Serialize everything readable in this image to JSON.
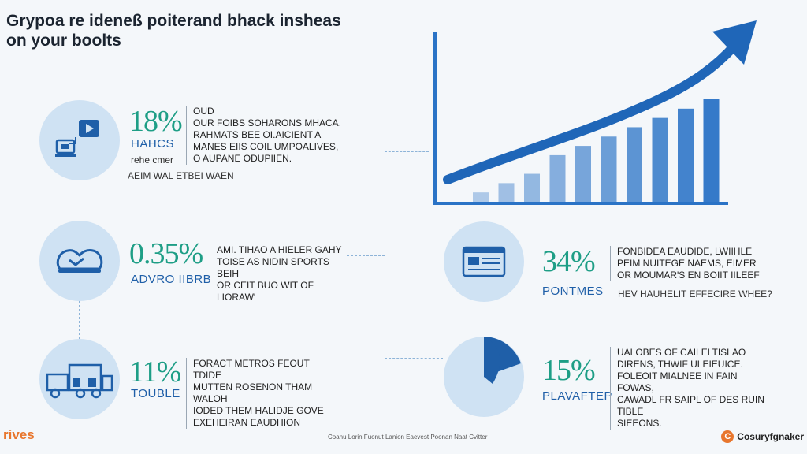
{
  "title": {
    "line1": "Grypoa re ideneß poiterand bhack insheas",
    "line2": "on your boolts"
  },
  "stats": [
    {
      "percent": "18%",
      "label": "HAHCS",
      "sub1": "rehe cmer",
      "sub2": "AEIM WAL ETBEI WAEN",
      "desc": "OUD\nOUR FOIBS SOHARONS MHACA.\nRAHMATS BEE OI.AICIENT A\nMANES EIIS COIL UMPOALIVES,\nO AUPANE ODUPIIEN.",
      "icon": "video-monitor-icon"
    },
    {
      "percent": "0.35%",
      "label": "ADVRO IIBRB",
      "desc": "AMI. TIHAO A HIELER GAHY\nTOISE AS NIDIN SPORTS BEIH\nOR CEIT BUO WIT OF LIORAW'",
      "icon": "handshake-icon"
    },
    {
      "percent": "11%",
      "label": "TOUBLE",
      "desc": "FORACT METROS FEOUT TDIDE\nMUTTEN ROSENON THAM WALOH\nIODED THEM HALIDJE GOVE\nEXEHEIRAN EAUDHION",
      "icon": "trucks-icon"
    },
    {
      "percent": "34%",
      "label": "PONTMES",
      "desc": "FONBIDEA EAUDIDE, LWIIHLE\nPEIM NUITEGE NAEMS, EIMER\nOR MOUMAR'S EN BOIIT IILEEF",
      "sub2": "HEV HAUHELIT EFFECIRE WHEE?",
      "icon": "card-window-icon"
    },
    {
      "percent": "15%",
      "label": "PLAVAFTEP",
      "desc": "UALOBES OF CAILELTISLAO\nDIRENS, THWIF ULEIEUICE.\nFOLEOIT MIALNEE IN FAIN FOWAS,\nCAWADL FR SAIPL OF DES RUIN TIBLE\nSIEEONS.",
      "icon": "pie-slice-icon"
    }
  ],
  "footer": {
    "brand_left": "rives",
    "fine_print": "Coanu Lorin Fuonut Lanion Eaevest Poonan Naat Cvitter",
    "brand_right": "Cosuryfgnaker",
    "logo_letter": "C"
  },
  "colors": {
    "accent_blue": "#2a73c6",
    "teal": "#1e9e86",
    "circle_fill": "#cfe2f3",
    "orange": "#e8762d"
  },
  "chart_data": {
    "type": "bar",
    "title": "",
    "xlabel": "",
    "ylabel": "",
    "values": [
      1,
      2,
      3,
      5,
      6,
      7,
      8,
      9,
      10,
      11
    ],
    "trend": "rising-arrow"
  }
}
